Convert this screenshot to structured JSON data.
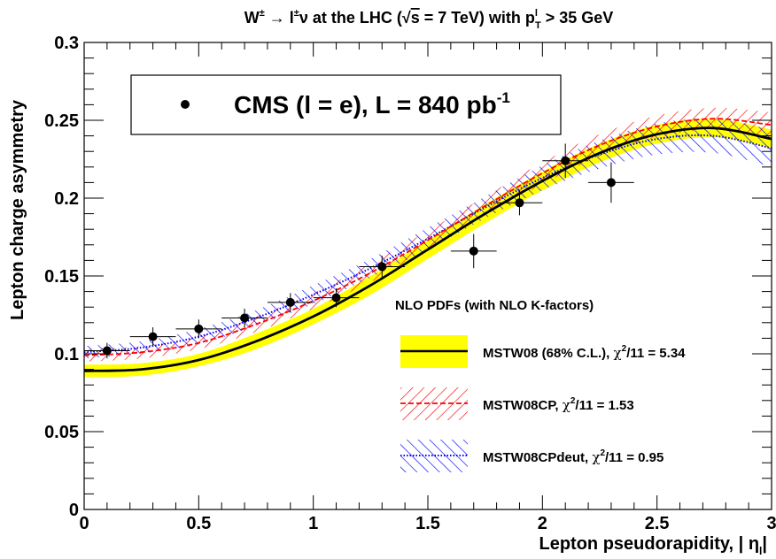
{
  "chart_data": {
    "type": "line",
    "title": "W± → l±ν at the LHC (√s = 7 TeV) with pT > 35 GeV",
    "title_parts": {
      "a": "W",
      "a_sup": "±",
      "b": " → l",
      "b_sup": "±",
      "c": "ν at the LHC (√",
      "d": "s",
      "e": " = 7 TeV) with p",
      "e_sup": "l",
      "e_sub": "T",
      "f": " > 35 GeV"
    },
    "xlabel": "Lepton pseudorapidity, | η",
    "xlabel_sub": "l",
    "xlabel_end": "|",
    "ylabel": "Lepton charge asymmetry",
    "xlim": [
      0,
      3
    ],
    "ylim": [
      0,
      0.3
    ],
    "x_ticks": [
      "0",
      "0.5",
      "1",
      "1.5",
      "2",
      "2.5",
      "3"
    ],
    "y_ticks": [
      "0",
      "0.05",
      "0.1",
      "0.15",
      "0.2",
      "0.25",
      "0.3"
    ],
    "grid": false,
    "data_legend": {
      "label": "CMS (l = e), L = 840 pb",
      "sup": "-1"
    },
    "annotation": "NLO PDFs (with NLO K-factors)",
    "data_points": {
      "name": "CMS (l = e)",
      "points": [
        {
          "x": 0.1,
          "y": 0.102,
          "xerr": 0.1,
          "yerr": 0.005
        },
        {
          "x": 0.3,
          "y": 0.111,
          "xerr": 0.1,
          "yerr": 0.006
        },
        {
          "x": 0.5,
          "y": 0.116,
          "xerr": 0.1,
          "yerr": 0.006
        },
        {
          "x": 0.7,
          "y": 0.123,
          "xerr": 0.1,
          "yerr": 0.006
        },
        {
          "x": 0.9,
          "y": 0.133,
          "xerr": 0.1,
          "yerr": 0.006
        },
        {
          "x": 1.1,
          "y": 0.136,
          "xerr": 0.1,
          "yerr": 0.006
        },
        {
          "x": 1.3,
          "y": 0.156,
          "xerr": 0.1,
          "yerr": 0.007
        },
        {
          "x": 1.7,
          "y": 0.166,
          "xerr": 0.1,
          "yerr": 0.011
        },
        {
          "x": 1.9,
          "y": 0.197,
          "xerr": 0.1,
          "yerr": 0.008
        },
        {
          "x": 2.1,
          "y": 0.224,
          "xerr": 0.1,
          "yerr": 0.011
        },
        {
          "x": 2.3,
          "y": 0.21,
          "xerr": 0.1,
          "yerr": 0.013
        }
      ]
    },
    "series": [
      {
        "name": "MSTW08 (68% C.L.), χ²/11 = 5.34",
        "label_main": "MSTW08 (68% C.L.), ",
        "label_chi": "χ",
        "label_sup": "2",
        "label_end": "/11 = 5.34",
        "style": "solid-black-yellow-band",
        "x": [
          0,
          0.25,
          0.5,
          0.75,
          1.0,
          1.25,
          1.5,
          1.75,
          2.0,
          2.25,
          2.5,
          2.75,
          3.0
        ],
        "y": [
          0.089,
          0.09,
          0.096,
          0.108,
          0.124,
          0.144,
          0.167,
          0.19,
          0.211,
          0.229,
          0.241,
          0.245,
          0.238
        ],
        "band": [
          0.004,
          0.004,
          0.004,
          0.005,
          0.005,
          0.006,
          0.006,
          0.006,
          0.006,
          0.006,
          0.006,
          0.006,
          0.006
        ]
      },
      {
        "name": "MSTW08CP, χ²/11 = 1.53",
        "label_main": "MSTW08CP, ",
        "label_chi": "χ",
        "label_sup": "2",
        "label_end": "/11 = 1.53",
        "style": "dashed-red-hatch",
        "x": [
          0,
          0.25,
          0.5,
          0.75,
          1.0,
          1.25,
          1.5,
          1.75,
          2.0,
          2.25,
          2.5,
          2.75,
          3.0
        ],
        "y": [
          0.099,
          0.101,
          0.107,
          0.119,
          0.134,
          0.152,
          0.173,
          0.195,
          0.216,
          0.234,
          0.246,
          0.251,
          0.247
        ],
        "band": [
          0.004,
          0.004,
          0.004,
          0.005,
          0.005,
          0.006,
          0.006,
          0.006,
          0.007,
          0.007,
          0.007,
          0.007,
          0.008
        ]
      },
      {
        "name": "MSTW08CPdeut, χ²/11 = 0.95",
        "label_main": "MSTW08CPdeut, ",
        "label_chi": "χ",
        "label_sup": "2",
        "label_end": "/11 = 0.95",
        "style": "dotted-blue-hatch",
        "x": [
          0,
          0.25,
          0.5,
          0.75,
          1.0,
          1.25,
          1.5,
          1.75,
          2.0,
          2.25,
          2.5,
          2.75,
          3.0
        ],
        "y": [
          0.101,
          0.104,
          0.111,
          0.123,
          0.138,
          0.155,
          0.174,
          0.194,
          0.213,
          0.228,
          0.238,
          0.24,
          0.232
        ],
        "band": [
          0.004,
          0.004,
          0.005,
          0.005,
          0.006,
          0.006,
          0.007,
          0.007,
          0.008,
          0.009,
          0.01,
          0.011,
          0.012
        ]
      }
    ],
    "colors": {
      "band_yellow": "#ffff00",
      "central_black": "#000000",
      "cp_red": "#ff0000",
      "deut_blue": "#0000ff"
    }
  }
}
